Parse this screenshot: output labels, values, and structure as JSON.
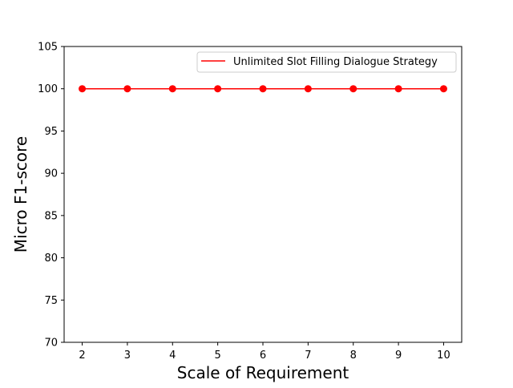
{
  "chart_data": {
    "type": "line",
    "title": "",
    "xlabel": "Scale of Requirement",
    "ylabel": "Micro F1-score",
    "x": [
      2,
      3,
      4,
      5,
      6,
      7,
      8,
      9,
      10
    ],
    "xticks": [
      "2",
      "3",
      "4",
      "5",
      "6",
      "7",
      "8",
      "9",
      "10"
    ],
    "yticks": [
      "70",
      "75",
      "80",
      "85",
      "90",
      "95",
      "100",
      "105"
    ],
    "ylim": [
      70,
      105
    ],
    "xlim": [
      1.6,
      10.4
    ],
    "grid": false,
    "legend_position": "top-right",
    "series": [
      {
        "name": "Unlimited Slot Filling Dialogue Strategy",
        "values": [
          100,
          100,
          100,
          100,
          100,
          100,
          100,
          100,
          100
        ],
        "color": "#ff0000",
        "marker": "circle"
      }
    ]
  }
}
